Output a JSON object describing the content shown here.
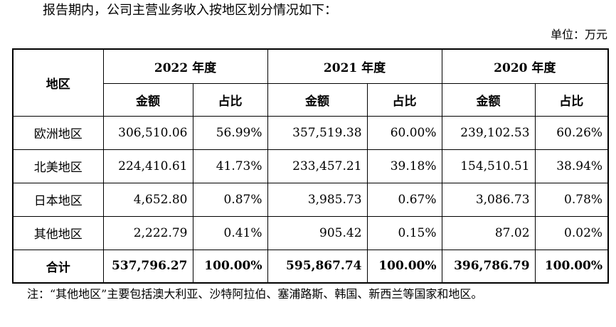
{
  "intro": "报告期内，公司主营业务收入按地区划分情况如下：",
  "unit": "单位：万元",
  "table": {
    "region_header": "地区",
    "years": [
      "2022 年度",
      "2021 年度",
      "2020 年度"
    ],
    "sub_headers": {
      "amount": "金额",
      "ratio": "占比"
    },
    "rows": [
      {
        "region": "欧洲地区",
        "values": [
          "306,510.06",
          "56.99%",
          "357,519.38",
          "60.00%",
          "239,102.53",
          "60.26%"
        ]
      },
      {
        "region": "北美地区",
        "values": [
          "224,410.61",
          "41.73%",
          "233,457.21",
          "39.18%",
          "154,510.51",
          "38.94%"
        ]
      },
      {
        "region": "日本地区",
        "values": [
          "4,652.80",
          "0.87%",
          "3,985.73",
          "0.67%",
          "3,086.73",
          "0.78%"
        ]
      },
      {
        "region": "其他地区",
        "values": [
          "2,222.79",
          "0.41%",
          "905.42",
          "0.15%",
          "87.02",
          "0.02%"
        ]
      }
    ],
    "total": {
      "region": "合计",
      "values": [
        "537,796.27",
        "100.00%",
        "595,867.74",
        "100.00%",
        "396,786.79",
        "100.00%"
      ]
    }
  },
  "note": "注：“其他地区”主要包括澳大利亚、沙特阿拉伯、塞浦路斯、韩国、新西兰等国家和地区。"
}
